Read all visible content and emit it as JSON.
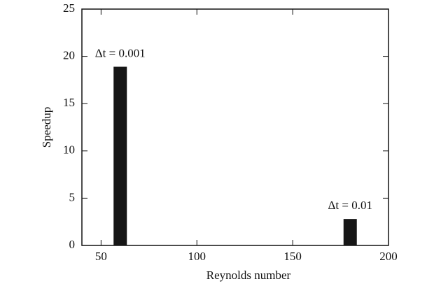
{
  "chart_data": {
    "type": "bar",
    "xlabel": "Reynolds number",
    "ylabel": "Speedup",
    "x": [
      60,
      180
    ],
    "values": [
      18.9,
      2.8
    ],
    "annotations": [
      "Δt = 0.001",
      "Δt = 0.01"
    ],
    "color": "#161616",
    "xlim": [
      40,
      200
    ],
    "xticks": [
      50,
      100,
      150,
      200
    ],
    "ylim": [
      0,
      25
    ],
    "yticks": [
      0,
      5,
      10,
      15,
      20,
      25
    ],
    "grid": false
  }
}
